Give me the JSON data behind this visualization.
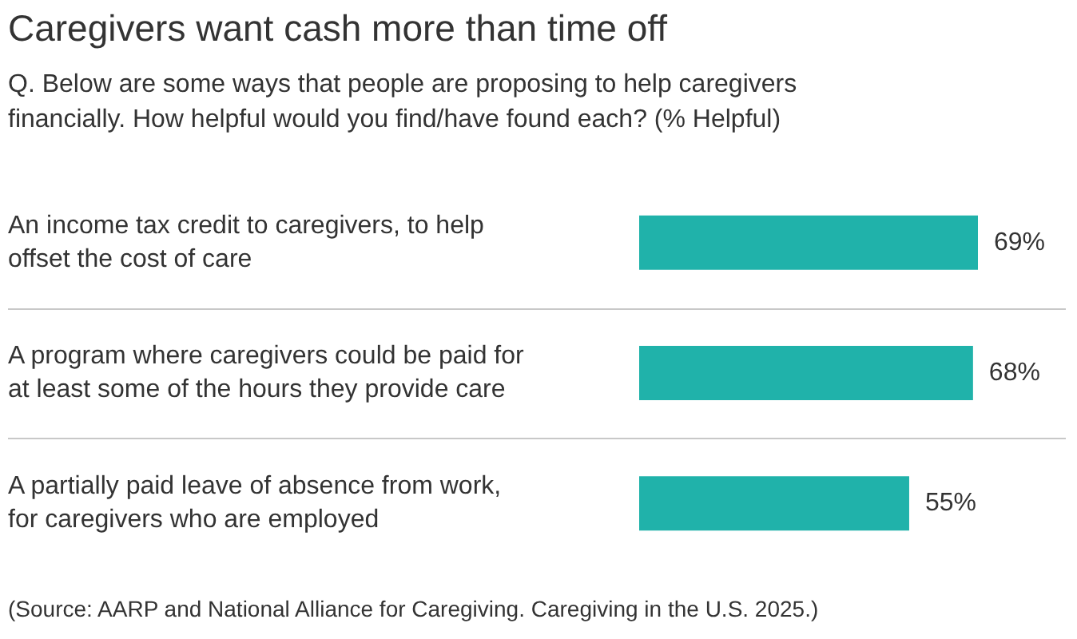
{
  "chart_data": {
    "type": "bar",
    "orientation": "horizontal",
    "title": "Caregivers want cash more than time off",
    "subtitle": "Q. Below are some ways that people are proposing to help caregivers\nfinancially. How helpful would you find/have found each? (% Helpful)",
    "categories": [
      "An income tax credit to caregivers, to help\noffset the cost of care",
      "A program where caregivers could be paid for\nat least some of the hours they provide care",
      "A partially paid leave of absence from work,\nfor caregivers who are employed"
    ],
    "values": [
      69,
      68,
      55
    ],
    "color": "#20b2aa",
    "data_labels": true,
    "value_labels": [
      "69%",
      "68%",
      "55%"
    ],
    "annotations": [
      "(Source: AARP and National Alliance for Caregiving. Caregiving in the U.S. 2025.)"
    ]
  }
}
